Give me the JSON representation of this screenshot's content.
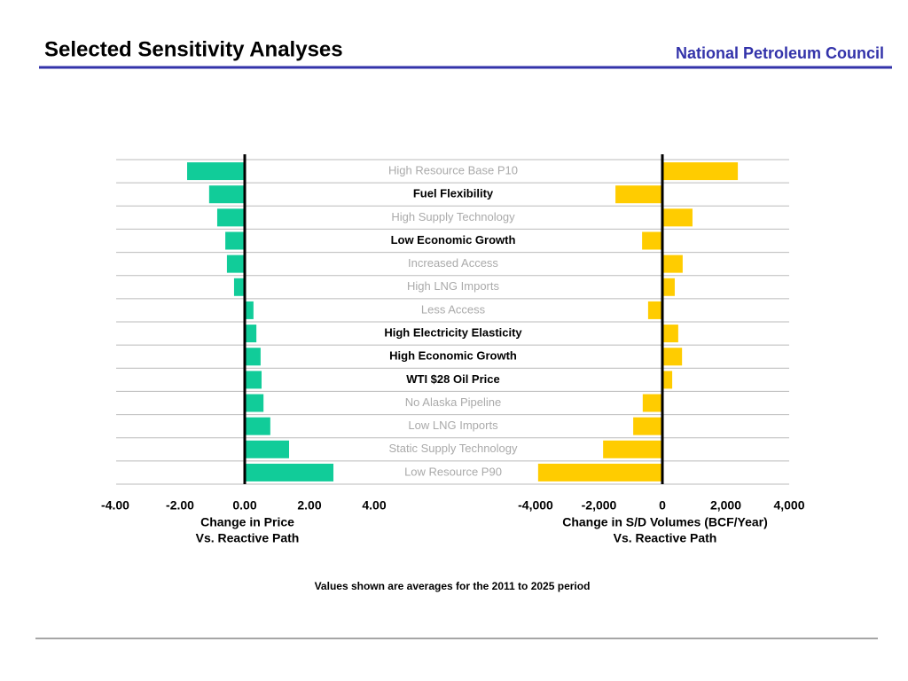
{
  "header": {
    "title": "Selected Sensitivity Analyses",
    "organization": "National Petroleum Council"
  },
  "categories": [
    "High Resource Base P10",
    "Fuel Flexibility",
    "High Supply Technology",
    "Low Economic Growth",
    "Increased Access",
    "High LNG Imports",
    "Less Access",
    "High Electricity Elasticity",
    "High Economic Growth",
    "WTI $28 Oil Price",
    "No Alaska Pipeline",
    "Low LNG Imports",
    "Static Supply Technology",
    "Low Resource P90"
  ],
  "category_emphasis": [
    false,
    true,
    false,
    true,
    false,
    false,
    false,
    true,
    true,
    true,
    false,
    false,
    false,
    false
  ],
  "chart_data": [
    {
      "type": "bar",
      "orientation": "horizontal",
      "color": "#11cc99",
      "xlabel": [
        "Change in Price",
        "Vs. Reactive Path"
      ],
      "values": [
        -1.78,
        -1.1,
        -0.85,
        -0.6,
        -0.55,
        -0.33,
        0.27,
        0.36,
        0.49,
        0.52,
        0.58,
        0.79,
        1.37,
        2.74
      ],
      "xlim": [
        -4,
        4
      ],
      "xticks": [
        {
          "value": -4,
          "label": "-4.00"
        },
        {
          "value": -2,
          "label": "-2.00"
        },
        {
          "value": 0,
          "label": "0.00"
        },
        {
          "value": 2,
          "label": "2.00"
        },
        {
          "value": 4,
          "label": "4.00"
        }
      ]
    },
    {
      "type": "bar",
      "orientation": "horizontal",
      "color": "#ffcc00",
      "xlabel": [
        "Change in S/D Volumes (BCF/Year)",
        "Vs. Reactive Path"
      ],
      "values": [
        2380,
        -1480,
        950,
        -640,
        640,
        390,
        -450,
        500,
        620,
        310,
        -620,
        -920,
        -1870,
        -3920
      ],
      "xlim": [
        -4000,
        4000
      ],
      "xticks": [
        {
          "value": -4000,
          "label": "-4,000"
        },
        {
          "value": -2000,
          "label": "-2,000"
        },
        0,
        {
          "value": 2000,
          "label": "2,000"
        },
        {
          "value": 4000,
          "label": "4,000"
        }
      ]
    }
  ],
  "footnote": "Values shown are averages for the 2011 to 2025 period"
}
